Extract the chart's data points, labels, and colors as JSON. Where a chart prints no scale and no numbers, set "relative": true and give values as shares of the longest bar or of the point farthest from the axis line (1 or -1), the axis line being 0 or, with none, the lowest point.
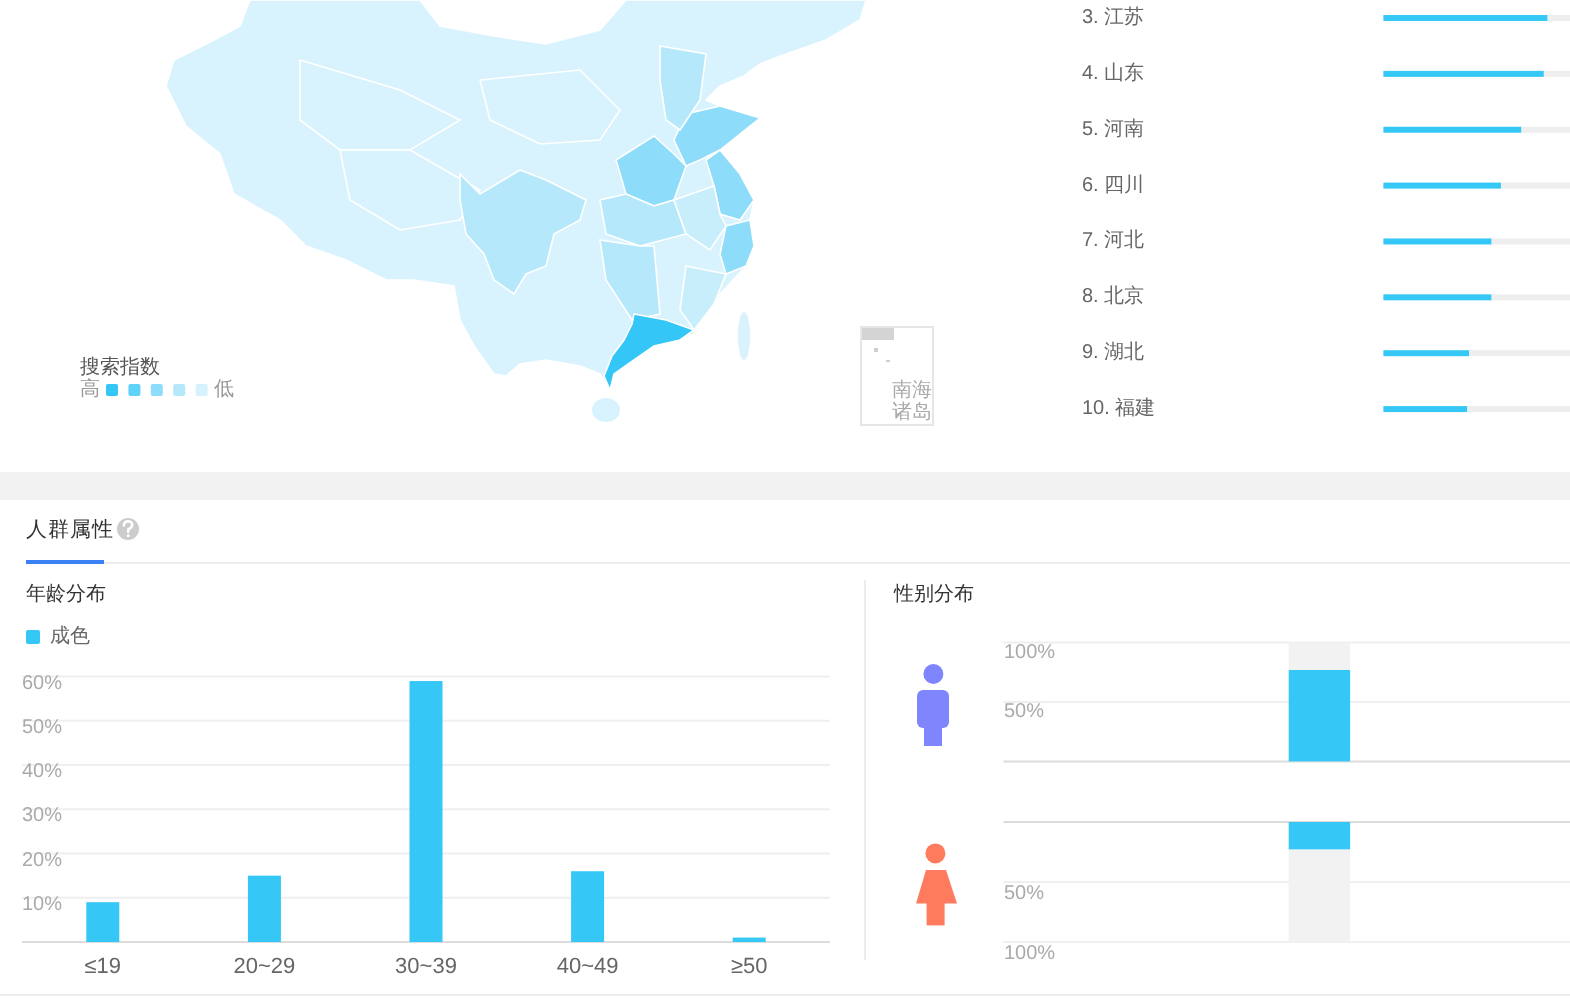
{
  "chart_data": [
    {
      "type": "other",
      "legend_title": "搜索指数",
      "categories": [
        "高",
        null,
        null,
        null,
        "低"
      ],
      "colors": [
        "#33c6f7",
        "#5ed2f9",
        "#8ddcf9",
        "#b6e8fb",
        "#d6f2fd"
      ],
      "annotations": [
        "南海诸岛"
      ]
    },
    {
      "type": "bar",
      "orientation": "horizontal",
      "stacked": true,
      "relative": true,
      "tick_labels": "y",
      "categories": [
        "3. 江苏",
        "4. 山东",
        "5. 河南",
        "6. 四川",
        "7. 河北",
        "8. 北京",
        "9. 湖北",
        "10. 福建"
      ],
      "series": [
        {
          "color": "#35c8f6",
          "values": [
            0.88,
            0.86,
            0.74,
            0.63,
            0.58,
            0.58,
            0.46,
            0.45
          ]
        },
        {
          "color": "#eeeeee",
          "values": [
            0.12,
            0.14,
            0.26,
            0.37,
            0.42,
            0.42,
            0.54,
            0.55
          ]
        }
      ]
    },
    {
      "type": "bar",
      "title": "人群属性",
      "subtitle": "年龄分布",
      "categories": [
        "≤19",
        "20~29",
        "30~39",
        "40~49",
        "≥50"
      ],
      "series": [
        {
          "name": "成色",
          "color": "#35c8f6",
          "values": [
            9,
            15,
            59,
            16,
            1
          ]
        }
      ],
      "ylim": [
        0,
        60
      ],
      "yticks": [
        {
          "value": 0,
          "label": null
        },
        {
          "value": 10,
          "label": "10%"
        },
        {
          "value": 20,
          "label": "20%"
        },
        {
          "value": 30,
          "label": "30%"
        },
        {
          "value": 40,
          "label": "40%"
        },
        {
          "value": 50,
          "label": "50%"
        },
        {
          "value": 60,
          "label": "60%"
        }
      ],
      "grid": "y",
      "legend": "top left"
    },
    {
      "type": "bar",
      "title": "性别分布",
      "stacked": true,
      "tick_labels": "y",
      "categories": [
        null
      ],
      "series": [
        {
          "color": "#35c8f6",
          "values": [
            77
          ]
        },
        {
          "color": "#f2f2f2",
          "values": [
            23
          ]
        }
      ],
      "ylim": [
        0,
        100
      ],
      "yticks": [
        {
          "value": 0,
          "label": null
        },
        {
          "value": 50,
          "label": "50%"
        },
        {
          "value": 100,
          "label": "100%"
        }
      ],
      "grid": "y"
    },
    {
      "type": "bar",
      "stacked": true,
      "tick_labels": "y",
      "categories": [
        null
      ],
      "series": [
        {
          "color": "#35c8f6",
          "values": [
            23
          ]
        },
        {
          "color": "#f2f2f2",
          "values": [
            77
          ]
        }
      ],
      "ylim": [
        100,
        0
      ],
      "yticks": [
        {
          "value": 0,
          "label": null
        },
        {
          "value": 50,
          "label": "50%"
        },
        {
          "value": 100,
          "label": "100%"
        }
      ],
      "grid": "y"
    }
  ]
}
